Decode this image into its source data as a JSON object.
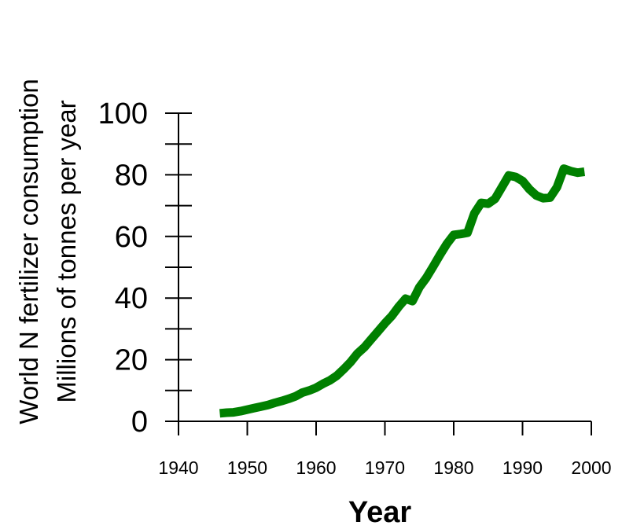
{
  "chart_data": {
    "type": "line",
    "title": "",
    "xlabel": "Year",
    "ylabel_lines": [
      "World N fertilizer consumption",
      "Millions of tonnes per year"
    ],
    "xlim": [
      1940,
      2000
    ],
    "ylim": [
      0,
      100
    ],
    "xticks": [
      "1940",
      "1950",
      "1960",
      "1970",
      "1980",
      "1990",
      "2000"
    ],
    "yticks": [
      "0",
      "20",
      "40",
      "60",
      "80",
      "100"
    ],
    "grid": false,
    "line_color": "#008000",
    "series": [
      {
        "x": [
          1946,
          1947,
          1948,
          1949,
          1950,
          1951,
          1952,
          1953,
          1954,
          1955,
          1956,
          1957,
          1958,
          1959,
          1960,
          1961,
          1962,
          1963,
          1964,
          1965,
          1966,
          1967,
          1968,
          1969,
          1970,
          1971,
          1972,
          1973,
          1974,
          1975,
          1976,
          1977,
          1978,
          1979,
          1980,
          1981,
          1982,
          1983,
          1984,
          1985,
          1986,
          1987,
          1988,
          1989,
          1990,
          1991,
          1992,
          1993,
          1994,
          1995,
          1996,
          1997,
          1998,
          1999
        ],
        "y": [
          2.6,
          2.8,
          2.9,
          3.3,
          3.8,
          4.3,
          4.8,
          5.3,
          6.0,
          6.6,
          7.3,
          8.1,
          9.3,
          10.0,
          10.9,
          12.2,
          13.3,
          14.8,
          16.9,
          19.2,
          22.0,
          24.0,
          26.6,
          29.2,
          31.8,
          34.2,
          37.2,
          39.8,
          39.0,
          43.5,
          46.5,
          50.2,
          54.0,
          57.6,
          60.5,
          60.8,
          61.2,
          67.5,
          70.9,
          70.6,
          72.2,
          76.0,
          79.8,
          79.3,
          78.0,
          75.3,
          73.3,
          72.4,
          72.6,
          76.0,
          82.0,
          81.2,
          80.7,
          81.0
        ]
      }
    ]
  }
}
